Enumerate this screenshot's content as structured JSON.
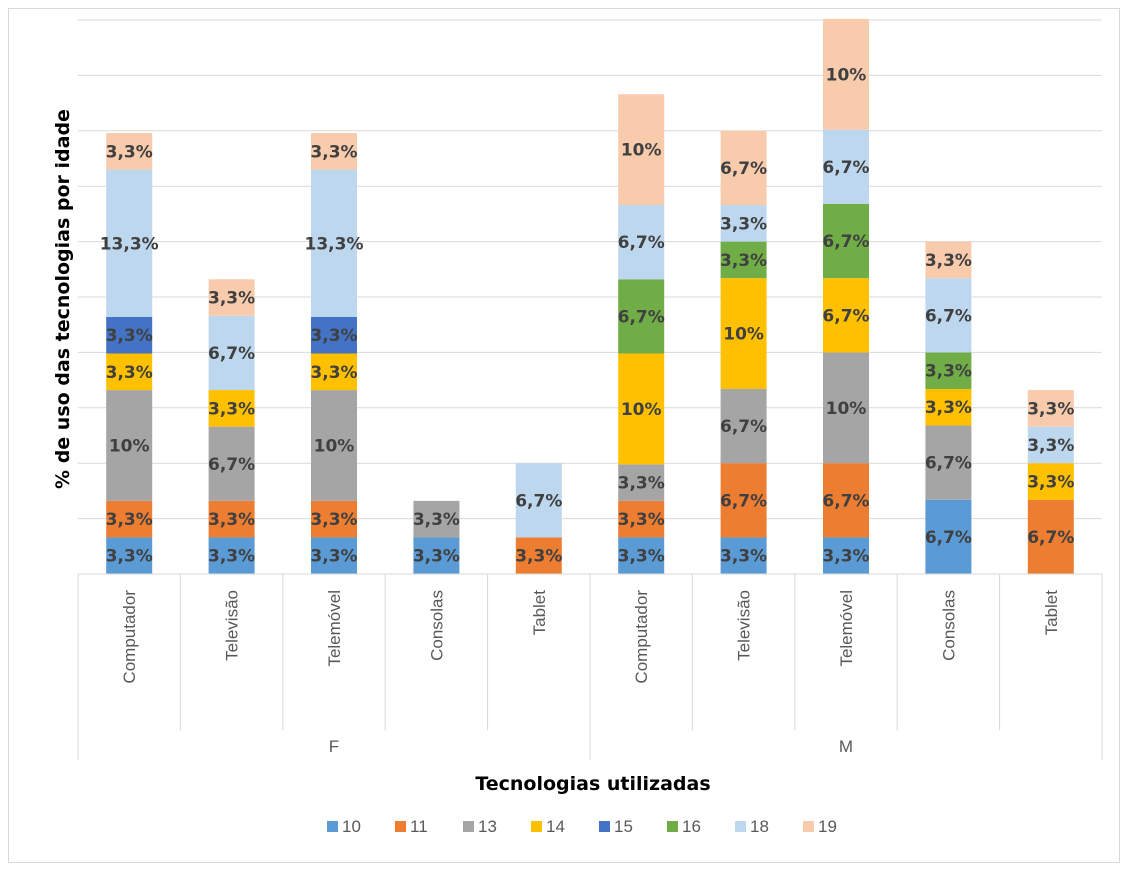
{
  "chart_data": {
    "type": "bar",
    "stacked": true,
    "title": "",
    "xlabel": "Tecnologias utilizadas",
    "ylabel": "% de uso das tecnologias por idade",
    "groups": [
      {
        "name": "F",
        "categories": [
          "Computador",
          "Televisão",
          "Telemóvel",
          "Consolas",
          "Tablet"
        ]
      },
      {
        "name": "M",
        "categories": [
          "Computador",
          "Televisão",
          "Telemóvel",
          "Consolas",
          "Tablet"
        ]
      }
    ],
    "ylim": [
      0,
      50
    ],
    "grid": true,
    "legend_position": "bottom",
    "series": [
      {
        "name": "10",
        "color": "#5b9bd5",
        "values": [
          3.3,
          3.3,
          3.3,
          3.3,
          null,
          3.3,
          3.3,
          3.3,
          6.7,
          null
        ],
        "labels": [
          "3,3%",
          "3,3%",
          "3,3%",
          "3,3%",
          "",
          "3,3%",
          "3,3%",
          "3,3%",
          "6,7%",
          ""
        ]
      },
      {
        "name": "11",
        "color": "#ed7d31",
        "values": [
          3.3,
          3.3,
          3.3,
          null,
          3.3,
          3.3,
          6.7,
          6.7,
          null,
          6.7
        ],
        "labels": [
          "3,3%",
          "3,3%",
          "3,3%",
          "",
          "3,3%",
          "3,3%",
          "6,7%",
          "6,7%",
          "",
          "6,7%"
        ]
      },
      {
        "name": "13",
        "color": "#a5a5a5",
        "values": [
          10,
          6.7,
          10,
          3.3,
          null,
          3.3,
          6.7,
          10,
          6.7,
          null
        ],
        "labels": [
          "10%",
          "6,7%",
          "10%",
          "3,3%",
          "",
          "3,3%",
          "6,7%",
          "10%",
          "6,7%",
          ""
        ]
      },
      {
        "name": "14",
        "color": "#ffc000",
        "values": [
          3.3,
          3.3,
          3.3,
          null,
          null,
          10,
          10,
          6.7,
          3.3,
          3.3
        ],
        "labels": [
          "3,3%",
          "3,3%",
          "3,3%",
          "",
          "",
          "10%",
          "10%",
          "6,7%",
          "3,3%",
          "3,3%"
        ]
      },
      {
        "name": "15",
        "color": "#4472c4",
        "values": [
          3.3,
          null,
          3.3,
          null,
          null,
          null,
          null,
          null,
          null,
          null
        ],
        "labels": [
          "3,3%",
          "",
          "3,3%",
          "",
          "",
          "",
          "",
          "",
          "",
          ""
        ]
      },
      {
        "name": "16",
        "color": "#70ad47",
        "values": [
          null,
          null,
          null,
          null,
          null,
          6.7,
          3.3,
          6.7,
          3.3,
          null
        ],
        "labels": [
          "",
          "",
          "",
          "",
          "",
          "6,7%",
          "3,3%",
          "6,7%",
          "3,3%",
          ""
        ]
      },
      {
        "name": "18",
        "color": "#bdd7ee",
        "values": [
          13.3,
          6.7,
          13.3,
          null,
          6.7,
          6.7,
          3.3,
          6.7,
          6.7,
          3.3
        ],
        "labels": [
          "13,3%",
          "6,7%",
          "13,3%",
          "",
          "6,7%",
          "6,7%",
          "3,3%",
          "6,7%",
          "6,7%",
          "3,3%"
        ]
      },
      {
        "name": "19",
        "color": "#f8cbad",
        "values": [
          3.3,
          3.3,
          3.3,
          null,
          null,
          10,
          6.7,
          10,
          3.3,
          3.3
        ],
        "labels": [
          "3,3%",
          "3,3%",
          "3,3%",
          "",
          "",
          "10%",
          "6,7%",
          "10%",
          "3,3%",
          "3,3%"
        ]
      }
    ]
  }
}
